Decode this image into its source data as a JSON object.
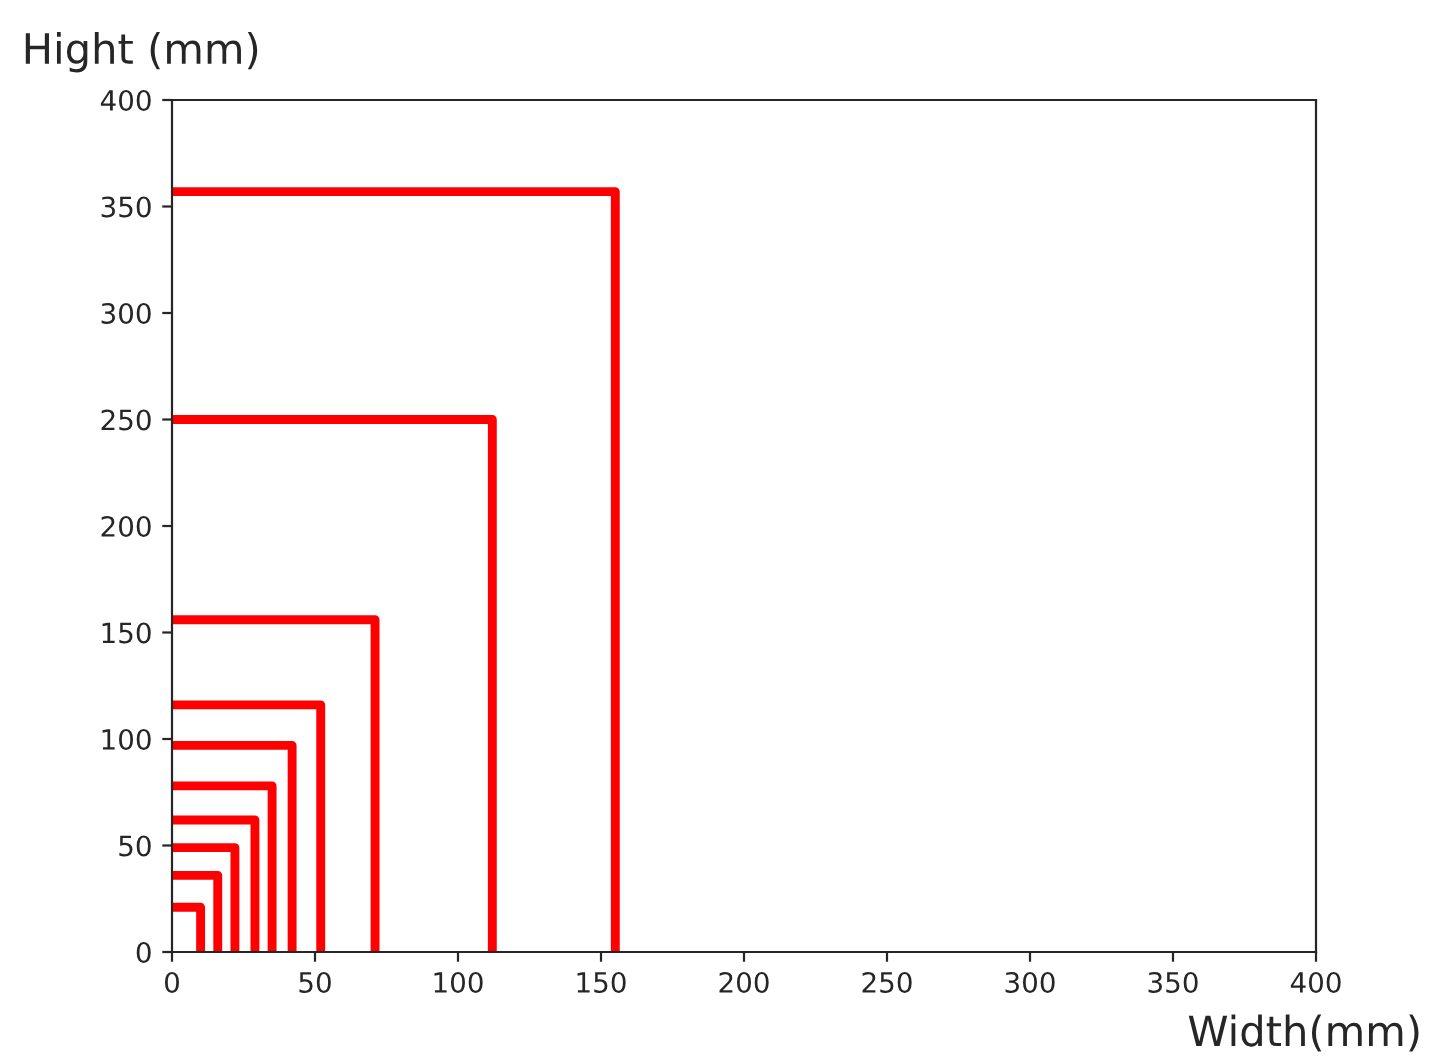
{
  "chart_data": {
    "type": "step",
    "xlabel": "Width(mm)",
    "ylabel": "Hight (mm)",
    "xlim": [
      0,
      400
    ],
    "ylim": [
      0,
      400
    ],
    "xticks": [
      0,
      50,
      100,
      150,
      200,
      250,
      300,
      350,
      400
    ],
    "yticks": [
      0,
      50,
      100,
      150,
      200,
      250,
      300,
      350,
      400
    ],
    "grid": false,
    "legend": false,
    "marker": "none",
    "line_style": "solid",
    "series": [
      {
        "color": "#ff0000",
        "x": [
          0,
          155
        ],
        "values": [
          357,
          0
        ]
      },
      {
        "color": "#ff0000",
        "x": [
          0,
          112
        ],
        "values": [
          250,
          0
        ]
      },
      {
        "color": "#ff0000",
        "x": [
          0,
          71
        ],
        "values": [
          156,
          0
        ]
      },
      {
        "color": "#ff0000",
        "x": [
          0,
          52
        ],
        "values": [
          116,
          0
        ]
      },
      {
        "color": "#ff0000",
        "x": [
          0,
          42
        ],
        "values": [
          97,
          0
        ]
      },
      {
        "color": "#ff0000",
        "x": [
          0,
          35
        ],
        "values": [
          78,
          0
        ]
      },
      {
        "color": "#ff0000",
        "x": [
          0,
          29
        ],
        "values": [
          62,
          0
        ]
      },
      {
        "color": "#ff0000",
        "x": [
          0,
          22
        ],
        "values": [
          49,
          0
        ]
      },
      {
        "color": "#ff0000",
        "x": [
          0,
          16
        ],
        "values": [
          36,
          0
        ]
      },
      {
        "color": "#ff0000",
        "x": [
          0,
          10
        ],
        "values": [
          21,
          0
        ]
      }
    ]
  }
}
